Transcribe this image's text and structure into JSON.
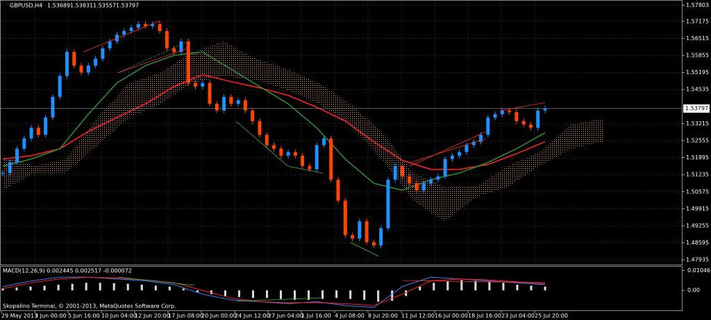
{
  "chart_data": {
    "type": "candlestick",
    "header": {
      "symbol": "GBPUSD,H4",
      "ohlc": [
        1.53689,
        1.53831,
        1.53557,
        1.53797
      ]
    },
    "current_price": 1.53797,
    "ylim": [
      1.4775,
      1.5795
    ],
    "yticks": [
      1.57803,
      1.57175,
      1.56515,
      1.55855,
      1.55195,
      1.54535,
      1.53215,
      1.52555,
      1.51895,
      1.51235,
      1.50575,
      1.49915,
      1.49255,
      1.48595,
      1.47935
    ],
    "grid": true,
    "up_color": "#1e90ff",
    "down_color": "#ff4500",
    "closes": [
      1.513,
      1.5171,
      1.5224,
      1.5264,
      1.5305,
      1.5278,
      1.5345,
      1.5425,
      1.5506,
      1.5599,
      1.5546,
      1.5519,
      1.5546,
      1.5573,
      1.5613,
      1.564,
      1.5666,
      1.568,
      1.5693,
      1.5707,
      1.5699,
      1.5707,
      1.568,
      1.5613,
      1.5599,
      1.564,
      1.5479,
      1.5465,
      1.5479,
      1.5398,
      1.5372,
      1.5425,
      1.5398,
      1.5412,
      1.5372,
      1.5331,
      1.5278,
      1.5238,
      1.5224,
      1.5197,
      1.5211,
      1.5197,
      1.5157,
      1.5144,
      1.5238,
      1.5264,
      1.5104,
      1.5023,
      1.4889,
      1.4876,
      1.4943,
      1.4862,
      1.4849,
      1.4916,
      1.5104,
      1.5157,
      1.5117,
      1.509,
      1.5063,
      1.509,
      1.5104,
      1.5117,
      1.5184,
      1.5197,
      1.5211,
      1.5238,
      1.5251,
      1.5278,
      1.5345,
      1.5358,
      1.5372,
      1.5366,
      1.5331,
      1.5318,
      1.5305,
      1.5372,
      1.538
    ],
    "lines": [
      {
        "color": "#ff2020",
        "values": [
          1.5184,
          1.5197,
          1.5224,
          1.5291,
          1.5345,
          1.5398,
          1.5465,
          1.5511,
          1.5484,
          1.546,
          1.5431,
          1.5385,
          1.5331,
          1.5251,
          1.5179,
          1.5144,
          1.5144,
          1.5163,
          1.5205,
          1.5251
        ]
      },
      {
        "color": "#2e8b2e",
        "values": [
          1.5157,
          1.5184,
          1.5224,
          1.5358,
          1.5479,
          1.5546,
          1.5586,
          1.5599,
          1.5532,
          1.5465,
          1.5398,
          1.5305,
          1.5184,
          1.509,
          1.5063,
          1.5104,
          1.513,
          1.5171,
          1.5224,
          1.5286
        ]
      }
    ],
    "cloud": {
      "color": "#f4a582",
      "upper": [
        1.5197,
        1.5157,
        1.5184,
        1.5345,
        1.5479,
        1.5519,
        1.5599,
        1.564,
        1.5573,
        1.5532,
        1.5479,
        1.5398,
        1.5291,
        1.513,
        1.5077,
        1.5077,
        1.5157,
        1.5211,
        1.5318,
        1.5339
      ],
      "lower": [
        1.5063,
        1.513,
        1.513,
        1.5238,
        1.5345,
        1.5398,
        1.5479,
        1.5506,
        1.5492,
        1.5452,
        1.5398,
        1.5318,
        1.5184,
        1.5023,
        1.4943,
        1.5037,
        1.5077,
        1.5157,
        1.5224,
        1.5251
      ]
    },
    "x_labels": [
      "29 May 2013",
      "3 Jun 00:00",
      "5 Jun 16:00",
      "10 Jun 04:00",
      "12 Jun 20:00",
      "17 Jun 08:00",
      "20 Jun 00:00",
      "24 Jun 12:00",
      "27 Jun 04:00",
      "1 Jul 16:00",
      "4 Jul 08:00",
      "8 Jul 20:00",
      "11 Jul 12:00",
      "16 Jul 00:00",
      "18 Jul 16:00",
      "23 Jul 04:00",
      "25 Jul 20:00"
    ],
    "macd": {
      "label": "MACD(12,26,9) 0.002445 0.002517 -0.000072",
      "ylim": [
        -0.0105,
        0.0125
      ],
      "yticks": [
        0.01046,
        {
          "value": 0,
          "label": "0.00"
        }
      ],
      "histogram": [
        0.001,
        0.0015,
        0.002,
        0.0025,
        0.003,
        0.0035,
        0.004,
        0.004,
        0.0038,
        0.0035,
        0.003,
        0.0025,
        0.002,
        0.001,
        -0.001,
        -0.002,
        -0.003,
        -0.0035,
        -0.004,
        -0.004,
        -0.0045,
        -0.005,
        -0.005,
        -0.0045,
        -0.004,
        -0.0045,
        -0.005,
        -0.006,
        -0.0055,
        -0.003,
        0.002,
        0.004,
        0.005,
        0.0055,
        0.005,
        0.0045,
        0.004,
        0.003,
        0.0025,
        0.002
      ],
      "main": {
        "color": "#3f7fff",
        "values": [
          0.002,
          0.005,
          0.007,
          0.007,
          0.006,
          0.005,
          0.003,
          -0.002,
          -0.005,
          -0.006,
          -0.007,
          -0.006,
          -0.008,
          -0.009,
          0.002,
          0.007,
          0.006,
          0.005,
          0.004,
          0.003
        ]
      },
      "signal": {
        "color": "#ff2020",
        "values": [
          0.001,
          0.004,
          0.006,
          0.007,
          0.0065,
          0.0055,
          0.004,
          0.0,
          -0.004,
          -0.006,
          -0.0065,
          -0.0065,
          -0.007,
          -0.008,
          -0.002,
          0.005,
          0.006,
          0.0055,
          0.0045,
          0.0035
        ]
      }
    },
    "footer": "Skopalino Terminal, © 2001-2013, MetaQuotes Software Corp."
  }
}
